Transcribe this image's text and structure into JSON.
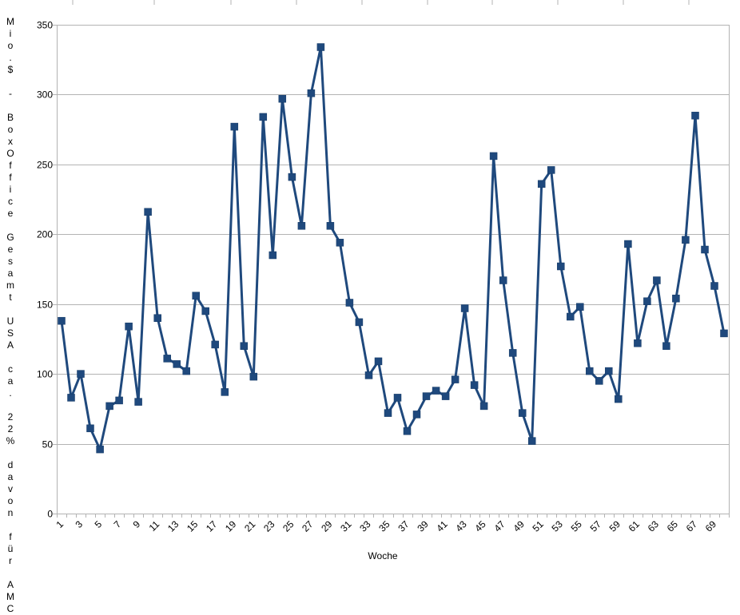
{
  "chart_data": {
    "type": "line",
    "xlabel": "Woche",
    "ylabel": "Mio.$ - BoxOffice Gesamt USA ca. 22% davon für AMC",
    "ylim": [
      0,
      350
    ],
    "yticks": [
      0,
      50,
      100,
      150,
      200,
      250,
      300,
      350
    ],
    "x": [
      1,
      2,
      3,
      4,
      5,
      6,
      7,
      8,
      9,
      10,
      11,
      12,
      13,
      14,
      15,
      16,
      17,
      18,
      19,
      20,
      21,
      22,
      23,
      24,
      25,
      26,
      27,
      28,
      29,
      30,
      31,
      32,
      33,
      34,
      35,
      36,
      37,
      38,
      39,
      40,
      41,
      42,
      43,
      44,
      45,
      46,
      47,
      48,
      49,
      50,
      51,
      52,
      53,
      54,
      55,
      56,
      57,
      58,
      59,
      60,
      61,
      62,
      63,
      64,
      65,
      66,
      67,
      68,
      69,
      70
    ],
    "xtick_labels": [
      "1",
      "3",
      "5",
      "7",
      "9",
      "11",
      "13",
      "15",
      "17",
      "19",
      "21",
      "23",
      "25",
      "27",
      "29",
      "31",
      "33",
      "35",
      "37",
      "39",
      "41",
      "43",
      "45",
      "47",
      "49",
      "51",
      "53",
      "55",
      "57",
      "59",
      "61",
      "63",
      "65",
      "67",
      "69"
    ],
    "grid": "horizontal",
    "series": [
      {
        "name": "",
        "color": "#1f497d",
        "marker": "square",
        "values": [
          138,
          83,
          100,
          61,
          46,
          77,
          81,
          134,
          80,
          216,
          140,
          111,
          107,
          102,
          156,
          145,
          121,
          87,
          277,
          120,
          98,
          284,
          185,
          297,
          241,
          206,
          301,
          334,
          206,
          194,
          151,
          137,
          99,
          109,
          72,
          83,
          59,
          71,
          84,
          88,
          84,
          96,
          147,
          92,
          77,
          256,
          167,
          115,
          72,
          52,
          236,
          246,
          177,
          141,
          148,
          102,
          95,
          102,
          82,
          193,
          122,
          152,
          167,
          120,
          154,
          196,
          285,
          189,
          163,
          129
        ]
      }
    ]
  }
}
